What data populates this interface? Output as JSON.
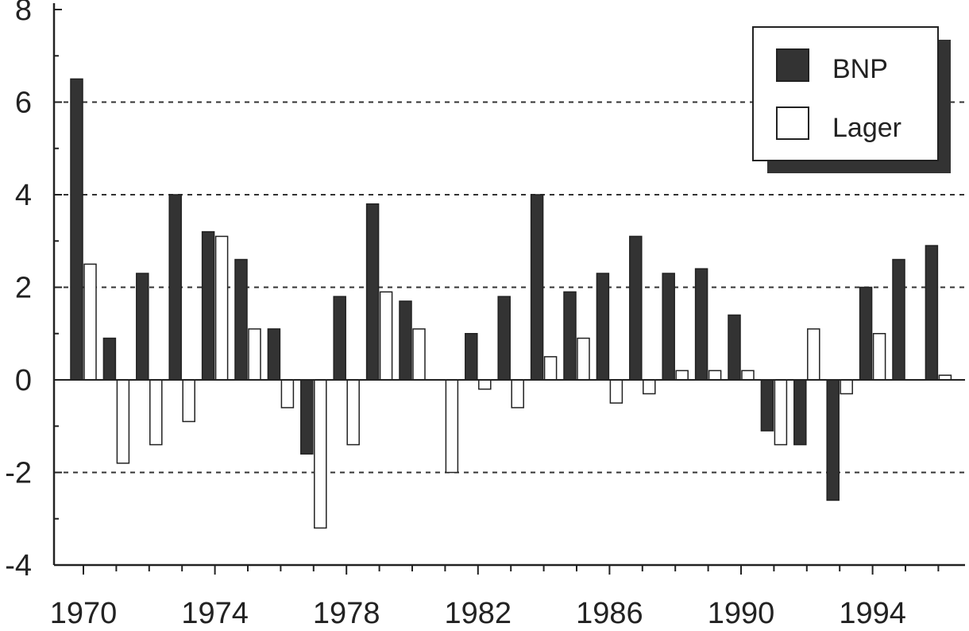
{
  "chart_data": {
    "type": "bar",
    "title": "",
    "xlabel": "",
    "ylabel": "",
    "x": [
      1970,
      1971,
      1972,
      1973,
      1974,
      1975,
      1976,
      1977,
      1978,
      1979,
      1980,
      1981,
      1982,
      1983,
      1984,
      1985,
      1986,
      1987,
      1988,
      1989,
      1990,
      1991,
      1992,
      1993,
      1994,
      1995,
      1996
    ],
    "series": [
      {
        "name": "BNP",
        "color": "#333333",
        "values": [
          6.5,
          0.9,
          2.3,
          4.0,
          3.2,
          2.6,
          1.1,
          -1.6,
          1.8,
          3.8,
          1.7,
          0.0,
          1.0,
          1.8,
          4.0,
          1.9,
          2.3,
          3.1,
          2.3,
          2.4,
          1.4,
          -1.1,
          -1.4,
          -2.6,
          2.0,
          2.6,
          2.9
        ]
      },
      {
        "name": "Lager",
        "color": "#ffffff",
        "values": [
          2.5,
          -1.8,
          -1.4,
          -0.9,
          3.1,
          1.1,
          -0.6,
          -3.2,
          -1.4,
          1.9,
          1.1,
          -2.0,
          -0.2,
          -0.6,
          0.5,
          0.9,
          -0.5,
          -0.3,
          0.2,
          0.2,
          0.2,
          -1.4,
          1.1,
          -0.3,
          1.0,
          0.0,
          0.1
        ]
      }
    ],
    "ylim": [
      -4,
      8
    ],
    "yticks": [
      -4,
      -2,
      0,
      2,
      4,
      6,
      8
    ],
    "ytick_labels": [
      "-4",
      "-2",
      "0",
      "2",
      "4",
      "6",
      "8"
    ],
    "xticks": [
      1970,
      1974,
      1978,
      1982,
      1986,
      1990,
      1994
    ],
    "xtick_labels": [
      "1970",
      "1974",
      "1978",
      "1982",
      "1986",
      "1990",
      "1994"
    ],
    "grid": "horizontal dashed",
    "legend": "top-right"
  }
}
